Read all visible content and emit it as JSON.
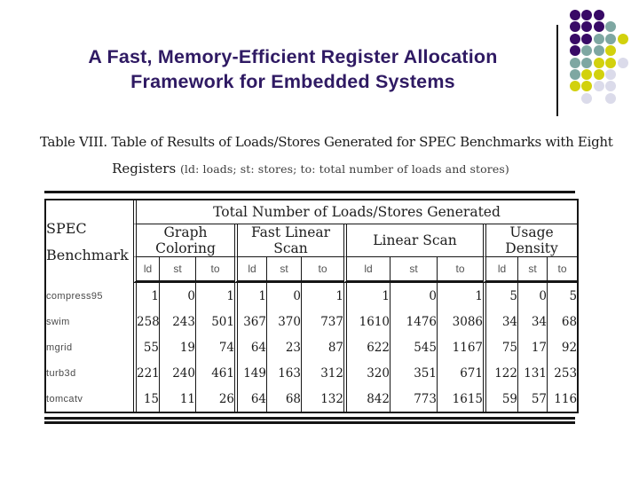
{
  "slide": {
    "title_line1": "A Fast, Memory-Efficient Register Allocation",
    "title_line2": "Framework for Embedded Systems",
    "title_color": "#2F1A63"
  },
  "caption": {
    "line1": "Table VIII.  Table of Results of Loads/Stores Generated for SPEC Benchmarks with Eight",
    "line2_lead": "Registers ",
    "line2_detail": "(ld: loads; st: stores; to: total number of loads and stores)"
  },
  "table": {
    "corner_line1": "SPEC",
    "corner_line2": "Benchmark",
    "span_header": "Total Number of Loads/Stores Generated",
    "groups": [
      "Graph Coloring",
      "Fast Linear Scan",
      "Linear Scan",
      "Usage Density"
    ],
    "subcolumns": [
      "ld",
      "st",
      "to"
    ],
    "rows": [
      {
        "benchmark": "compress95",
        "values": [
          1,
          0,
          1,
          1,
          0,
          1,
          1,
          0,
          1,
          5,
          0,
          5
        ]
      },
      {
        "benchmark": "swim",
        "values": [
          258,
          243,
          501,
          367,
          370,
          737,
          1610,
          1476,
          3086,
          34,
          34,
          68
        ]
      },
      {
        "benchmark": "mgrid",
        "values": [
          55,
          19,
          74,
          64,
          23,
          87,
          622,
          545,
          1167,
          75,
          17,
          92
        ]
      },
      {
        "benchmark": "turb3d",
        "values": [
          221,
          240,
          461,
          149,
          163,
          312,
          320,
          351,
          671,
          122,
          131,
          253
        ]
      },
      {
        "benchmark": "tomcatv",
        "values": [
          15,
          11,
          26,
          64,
          68,
          132,
          842,
          773,
          1615,
          59,
          57,
          116
        ]
      }
    ]
  },
  "decor": {
    "dot_grid": [
      "PPP..",
      "PPPT.",
      "PPTTY",
      "PTTY.",
      "TTYYL",
      "TYYL.",
      "YYLL.",
      ".L.L."
    ],
    "dot_colors": {
      "P": "#380A66",
      "T": "#7EA7A2",
      "Y": "#D2D10D",
      "L": "#DBDBEA"
    }
  }
}
